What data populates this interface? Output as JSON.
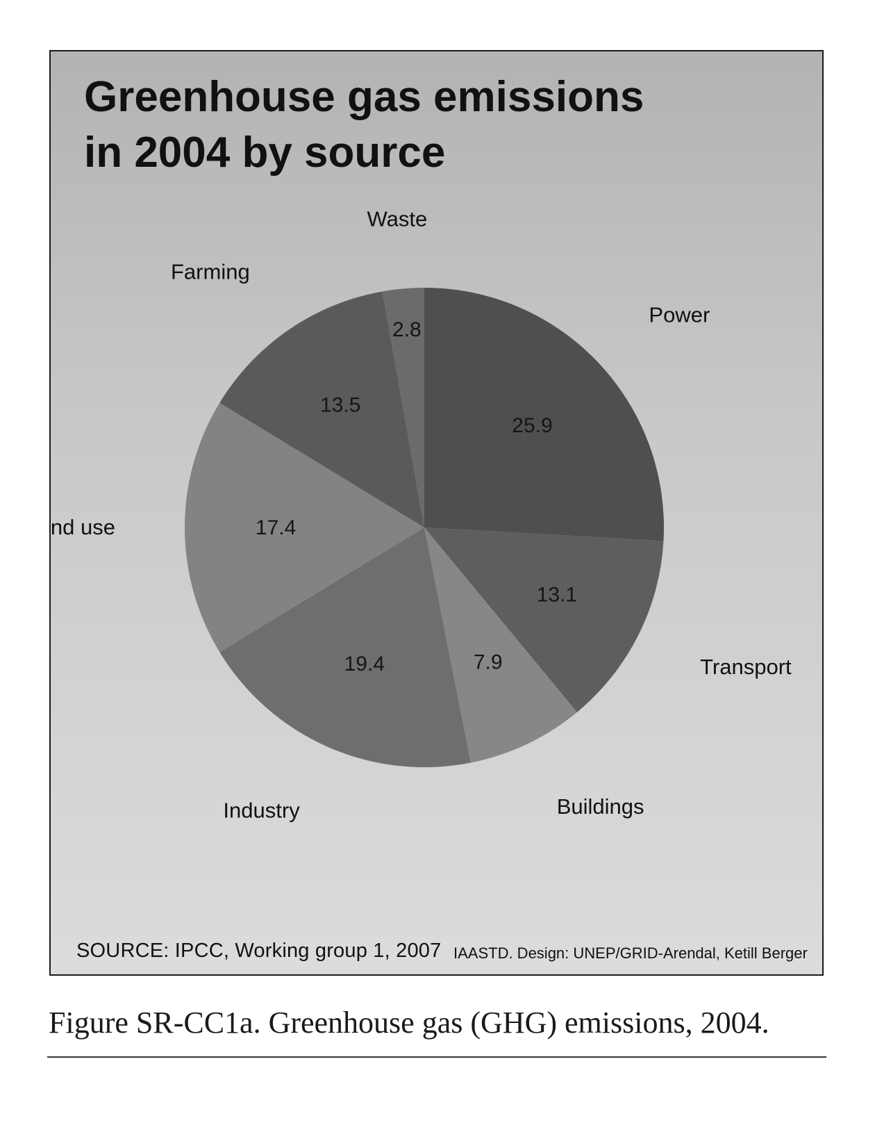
{
  "chart_data": {
    "type": "pie",
    "title_lines": [
      "Greenhouse gas emissions",
      "in 2004 by source"
    ],
    "slices": [
      {
        "label": "Power",
        "value": 25.9,
        "value_label": "25.9",
        "color": "#4f4f4f"
      },
      {
        "label": "Transport",
        "value": 13.1,
        "value_label": "13.1",
        "color": "#5e5e5e"
      },
      {
        "label": "Buildings",
        "value": 7.9,
        "value_label": "7.9",
        "color": "#878787"
      },
      {
        "label": "Industry",
        "value": 19.4,
        "value_label": "19.4",
        "color": "#6e6e6e"
      },
      {
        "label": "Land use",
        "value": 17.4,
        "value_label": "17.4",
        "color": "#838383"
      },
      {
        "label": "Farming",
        "value": 13.5,
        "value_label": "13.5",
        "color": "#5a5a5a"
      },
      {
        "label": "Waste",
        "value": 2.8,
        "value_label": "2.8",
        "color": "#6b6b6b"
      }
    ],
    "start": "12 o'clock",
    "direction": "clockwise",
    "legend": "none"
  },
  "source": "SOURCE: IPCC, Working group 1, 2007",
  "credit": "IAASTD. Design: UNEP/GRID-Arendal, Ketill Berger",
  "caption": "Figure SR-CC1a. Greenhouse gas (GHG) emissions, 2004."
}
